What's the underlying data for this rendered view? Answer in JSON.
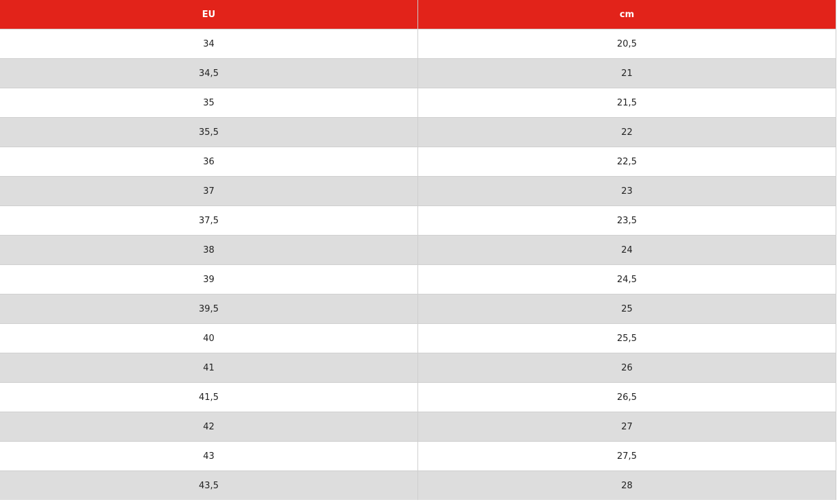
{
  "table": {
    "headers": [
      "EU",
      "cm"
    ],
    "header_color": "#e2231a",
    "rows": [
      [
        "34",
        "20,5"
      ],
      [
        "34,5",
        "21"
      ],
      [
        "35",
        "21,5"
      ],
      [
        "35,5",
        "22"
      ],
      [
        "36",
        "22,5"
      ],
      [
        "37",
        "23"
      ],
      [
        "37,5",
        "23,5"
      ],
      [
        "38",
        "24"
      ],
      [
        "39",
        "24,5"
      ],
      [
        "39,5",
        "25"
      ],
      [
        "40",
        "25,5"
      ],
      [
        "41",
        "26"
      ],
      [
        "41,5",
        "26,5"
      ],
      [
        "42",
        "27"
      ],
      [
        "43",
        "27,5"
      ],
      [
        "43,5",
        "28"
      ]
    ]
  }
}
